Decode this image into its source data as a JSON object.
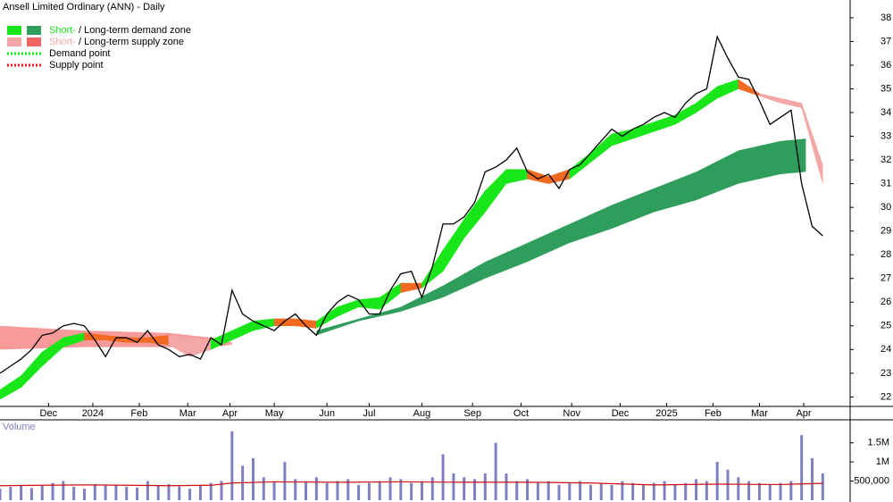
{
  "chart_data": {
    "type": "stock",
    "title": "Ansell Limited Ordinary (ANN) - Daily",
    "legend": [
      {
        "short": "Short-",
        "rest": "/ Long-term demand zone",
        "colors": [
          "#19e619",
          "#2f9e5c"
        ],
        "short_color": "#19e619"
      },
      {
        "short": "Short-",
        "rest": "/ Long-term supply zone",
        "colors": [
          "#f4a7a7",
          "#f26464"
        ],
        "short_color": "#f4a7a7"
      },
      {
        "rest": "Demand point",
        "line_color": "#19e619"
      },
      {
        "rest": "Supply point",
        "line_color": "#e01010"
      }
    ],
    "xlim": [
      0,
      403
    ],
    "xticks": [
      {
        "value": 23,
        "label": "Dec"
      },
      {
        "value": 44,
        "label": "2024"
      },
      {
        "value": 66,
        "label": "Feb"
      },
      {
        "value": 89,
        "label": "Mar"
      },
      {
        "value": 109,
        "label": "Apr"
      },
      {
        "value": 130,
        "label": "May"
      },
      {
        "value": 155,
        "label": "Jun"
      },
      {
        "value": 175,
        "label": "Jul"
      },
      {
        "value": 200,
        "label": "Aug"
      },
      {
        "value": 224,
        "label": "Sep"
      },
      {
        "value": 247,
        "label": "Oct"
      },
      {
        "value": 271,
        "label": "Nov"
      },
      {
        "value": 294,
        "label": "Dec"
      },
      {
        "value": 316,
        "label": "2025"
      },
      {
        "value": 338,
        "label": "Feb"
      },
      {
        "value": 360,
        "label": "Mar"
      },
      {
        "value": 381,
        "label": "Apr"
      }
    ],
    "ylim": [
      21.6,
      38.75
    ],
    "yticks": [
      22,
      23,
      24,
      25,
      26,
      27,
      28,
      29,
      30,
      31,
      32,
      33,
      34,
      35,
      36,
      37,
      38
    ],
    "price": {
      "color": "#000000",
      "x": [
        0,
        5,
        10,
        15,
        20,
        25,
        30,
        35,
        40,
        45,
        50,
        55,
        60,
        65,
        70,
        75,
        80,
        85,
        90,
        95,
        100,
        105,
        110,
        115,
        120,
        125,
        130,
        135,
        140,
        145,
        150,
        155,
        160,
        165,
        170,
        175,
        180,
        185,
        190,
        195,
        200,
        205,
        210,
        215,
        220,
        225,
        230,
        235,
        240,
        245,
        250,
        255,
        260,
        265,
        270,
        275,
        280,
        285,
        290,
        295,
        300,
        305,
        310,
        315,
        320,
        325,
        330,
        335,
        340,
        345,
        350,
        355,
        360,
        365,
        370,
        375,
        380,
        385,
        390
      ],
      "values": [
        23,
        23.3,
        23.6,
        24,
        24.6,
        24.7,
        25,
        25.1,
        25,
        24.4,
        23.7,
        24.5,
        24.5,
        24.3,
        24.8,
        24.2,
        24,
        23.7,
        23.8,
        23.6,
        24.5,
        24.2,
        26.5,
        25.5,
        25.2,
        25,
        24.8,
        25.2,
        25.5,
        25,
        24.6,
        25.5,
        26,
        26.3,
        26.1,
        25.5,
        25.5,
        26.5,
        27.2,
        27.3,
        26.2,
        27.5,
        29.3,
        29.3,
        29.6,
        30.2,
        31.5,
        31.7,
        32,
        32.5,
        31.5,
        31.2,
        31.4,
        30.8,
        31.6,
        31.8,
        32.3,
        32.8,
        33.3,
        33,
        33.3,
        33.5,
        33.8,
        34,
        33.8,
        34.4,
        34.8,
        35,
        37.2,
        36.3,
        35.5,
        35.4,
        34.5,
        33.5,
        33.8,
        34.1,
        31,
        29.2,
        28.8
      ]
    },
    "short_zone": {
      "x": [
        0,
        10,
        20,
        30,
        40,
        50,
        60,
        70,
        80,
        90,
        100,
        110,
        120,
        130,
        140,
        150,
        160,
        170,
        180,
        190,
        200,
        210,
        220,
        230,
        240,
        250,
        260,
        270,
        280,
        290,
        300,
        310,
        320,
        330,
        340,
        350,
        360,
        370,
        380,
        390
      ],
      "upper": [
        22.3,
        22.9,
        23.9,
        24.5,
        24.7,
        24.6,
        24.5,
        24.5,
        24.6,
        24.5,
        24.4,
        24.8,
        25.2,
        25.3,
        25.3,
        25.2,
        25.8,
        26.1,
        26.2,
        26.8,
        26.8,
        28.2,
        29.5,
        30.7,
        31.6,
        31.6,
        31.3,
        31.6,
        32.3,
        33.1,
        33.3,
        33.6,
        33.9,
        34.4,
        35.1,
        35.4,
        34.8,
        34.6,
        34.4,
        31.8
      ],
      "lower": [
        21.9,
        22.4,
        23.3,
        24.1,
        24.4,
        24.4,
        24.3,
        24.3,
        24.2,
        23.7,
        24.0,
        24.4,
        24.8,
        25.0,
        25.0,
        24.9,
        25.4,
        25.8,
        25.7,
        26.4,
        26.6,
        27.3,
        28.7,
        29.8,
        31.0,
        31.2,
        31.0,
        31.2,
        31.9,
        32.6,
        32.9,
        33.2,
        33.5,
        34.0,
        34.6,
        35.0,
        34.7,
        34.4,
        34.2,
        31.0
      ],
      "segment_colors": [
        "#19e619",
        "#19e619",
        "#19e619",
        "#19e619",
        "#f26a21",
        "#f26a21",
        "#f26a21",
        "#f26a21",
        "#f4a7a7",
        "#f4a7a7",
        "#19e619",
        "#19e619",
        "#19e619",
        "#f26a21",
        "#f26a21",
        "#19e619",
        "#19e619",
        "#19e619",
        "#19e619",
        "#f26a21",
        "#19e619",
        "#19e619",
        "#19e619",
        "#19e619",
        "#19e619",
        "#f26a21",
        "#f26a21",
        "#19e619",
        "#19e619",
        "#19e619",
        "#19e619",
        "#19e619",
        "#19e619",
        "#19e619",
        "#19e619",
        "#f26a21",
        "#f4a7a7",
        "#f4a7a7",
        "#f4a7a7"
      ]
    },
    "long_supply_zone": {
      "color": "#f89a9a",
      "x": [
        0,
        40,
        80,
        100,
        110
      ],
      "upper": [
        25,
        24.8,
        24.7,
        24.5,
        24.3
      ],
      "lower": [
        24,
        24.1,
        24.1,
        24.1,
        24.2
      ]
    },
    "long_demand_zone": {
      "color": "#2f9e5c",
      "x": [
        150,
        170,
        190,
        210,
        230,
        250,
        270,
        290,
        310,
        330,
        350,
        370,
        382
      ],
      "upper": [
        24.8,
        25.3,
        25.8,
        26.7,
        27.7,
        28.5,
        29.3,
        30.1,
        30.8,
        31.5,
        32.4,
        32.8,
        32.9
      ],
      "lower": [
        24.6,
        25.2,
        25.6,
        26.2,
        27,
        27.7,
        28.5,
        29.1,
        29.8,
        30.3,
        31,
        31.4,
        31.5
      ]
    },
    "volume": {
      "label": "Volume",
      "color": "#8080c0",
      "ylim": [
        0,
        2100000
      ],
      "yticks": [
        {
          "value": 500000,
          "label": "500,000"
        },
        {
          "value": 1000000,
          "label": "1M"
        },
        {
          "value": 1500000,
          "label": "1.5M"
        }
      ],
      "x": [
        0,
        5,
        10,
        15,
        20,
        25,
        30,
        35,
        40,
        45,
        50,
        55,
        60,
        65,
        70,
        75,
        80,
        85,
        90,
        95,
        100,
        105,
        110,
        115,
        120,
        125,
        130,
        135,
        140,
        145,
        150,
        155,
        160,
        165,
        170,
        175,
        180,
        185,
        190,
        195,
        200,
        205,
        210,
        215,
        220,
        225,
        230,
        235,
        240,
        245,
        250,
        255,
        260,
        265,
        270,
        275,
        280,
        285,
        290,
        295,
        300,
        305,
        310,
        315,
        320,
        325,
        330,
        335,
        340,
        345,
        350,
        355,
        360,
        365,
        370,
        375,
        380,
        385,
        390
      ],
      "values": [
        300000,
        350000,
        400000,
        320000,
        380000,
        450000,
        500000,
        350000,
        300000,
        420000,
        380000,
        400000,
        350000,
        330000,
        500000,
        380000,
        420000,
        360000,
        300000,
        400000,
        450000,
        500000,
        1800000,
        900000,
        1100000,
        600000,
        500000,
        1000000,
        550000,
        500000,
        600000,
        450000,
        500000,
        550000,
        400000,
        450000,
        500000,
        600000,
        550000,
        450000,
        500000,
        600000,
        1200000,
        700000,
        600000,
        550000,
        700000,
        1500000,
        700000,
        500000,
        550000,
        450000,
        500000,
        400000,
        450000,
        500000,
        400000,
        450000,
        400000,
        500000,
        450000,
        400000,
        450000,
        500000,
        400000,
        450000,
        550000,
        500000,
        1000000,
        800000,
        600000,
        500000,
        450000,
        400000,
        450000,
        500000,
        1700000,
        1100000,
        700000
      ],
      "average": {
        "color": "#d01010",
        "x": [
          0,
          20,
          40,
          60,
          80,
          100,
          110,
          130,
          160,
          190,
          220,
          250,
          280,
          310,
          340,
          370,
          390
        ],
        "values": [
          380000,
          390000,
          400000,
          390000,
          380000,
          390000,
          450000,
          480000,
          470000,
          480000,
          470000,
          470000,
          450000,
          400000,
          420000,
          410000,
          440000
        ]
      }
    }
  }
}
